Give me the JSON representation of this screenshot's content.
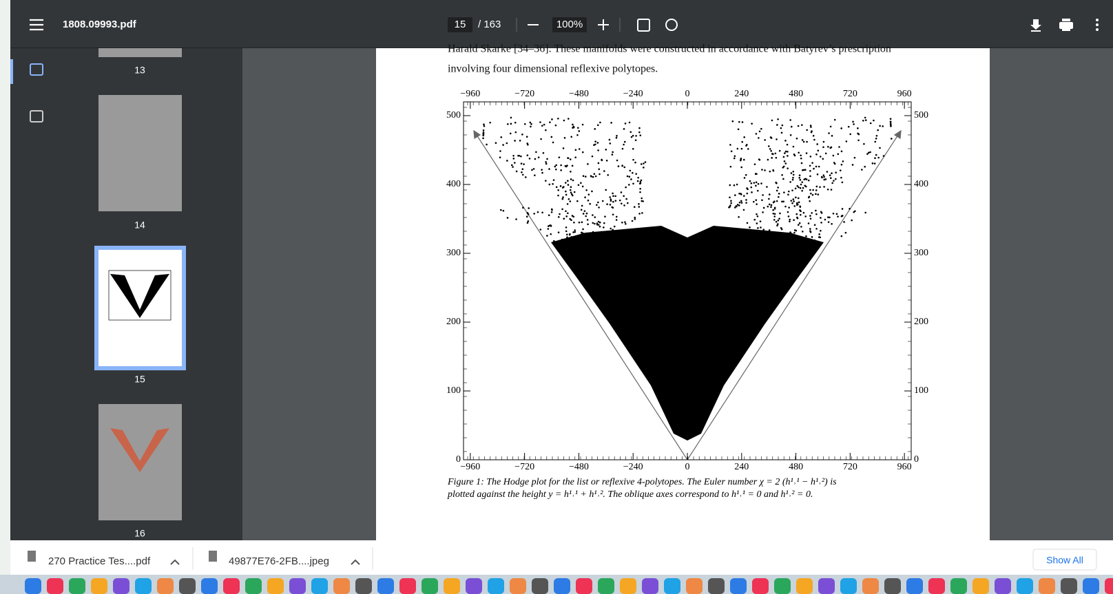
{
  "toolbar": {
    "filename": "1808.09993.pdf",
    "page": "15",
    "page_count": "/ 163",
    "zoom": "100%"
  },
  "thumbnails": [
    "13",
    "14",
    "15",
    "16"
  ],
  "document": {
    "lines": [
      "Harald Skarke [34–36]. These manifolds were constructed in accordance with Batyrev’s prescription",
      "involving four dimensional reflexive polytopes."
    ],
    "figure": {
      "type": "scatter",
      "xlim": [
        -990,
        990
      ],
      "ylim": [
        0,
        520
      ],
      "xticks": [
        {
          "value": -960,
          "label": "−960"
        },
        {
          "value": -720,
          "label": "−720"
        },
        {
          "value": -480,
          "label": "−480"
        },
        {
          "value": -240,
          "label": "−240"
        },
        0,
        240,
        480,
        720,
        960
      ],
      "yticks": [
        0,
        100,
        200,
        300,
        400,
        500
      ],
      "caption": [
        "Figure 1:  The Hodge plot for the list or reflexive 4-polytopes.  The Euler number χ = 2 (h¹˒¹ − h¹˒²) is",
        "plotted against the height y = h¹˒¹ + h¹˒².  The oblique axes correspond to h¹˒¹ = 0 and h¹˒² = 0."
      ]
    }
  },
  "downloads": {
    "items": [
      "270 Practice Tes....pdf",
      "49877E76-2FB....jpeg"
    ],
    "show_all": "Show All"
  }
}
